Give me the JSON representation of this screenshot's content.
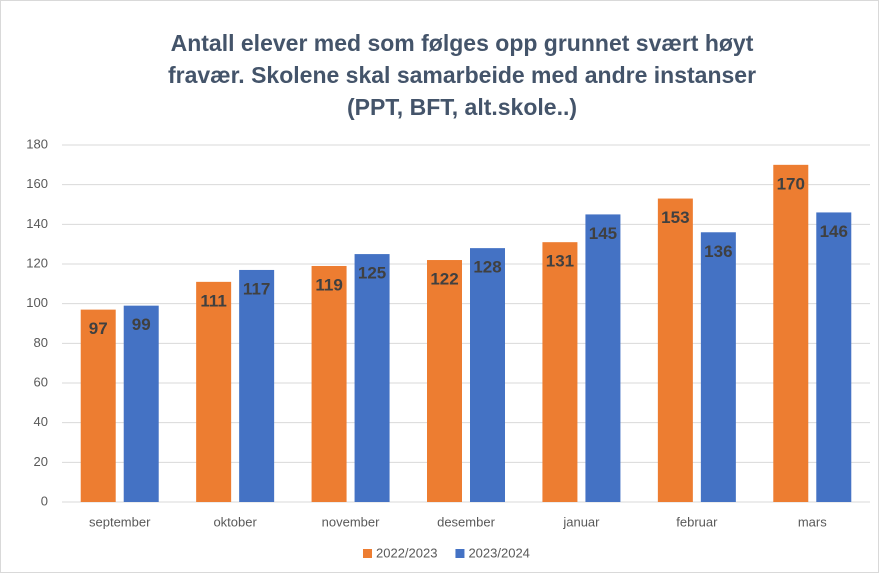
{
  "chart_data": {
    "type": "bar",
    "title": [
      "Antall elever med som følges opp grunnet svært høyt",
      "fravær. Skolene skal samarbeide med andre instanser",
      "(PPT, BFT, alt.skole..)"
    ],
    "categories": [
      "september",
      "oktober",
      "november",
      "desember",
      "januar",
      "februar",
      "mars"
    ],
    "series": [
      {
        "name": "2022/2023",
        "color": "#ed7d31",
        "values": [
          97,
          111,
          119,
          122,
          131,
          153,
          170
        ]
      },
      {
        "name": "2023/2024",
        "color": "#4472c4",
        "values": [
          99,
          117,
          125,
          128,
          145,
          136,
          146
        ]
      }
    ],
    "ylim": [
      0,
      180
    ],
    "yticks": [
      0,
      20,
      40,
      60,
      80,
      100,
      120,
      140,
      160,
      180
    ],
    "grid": true,
    "legend": "bottom"
  }
}
